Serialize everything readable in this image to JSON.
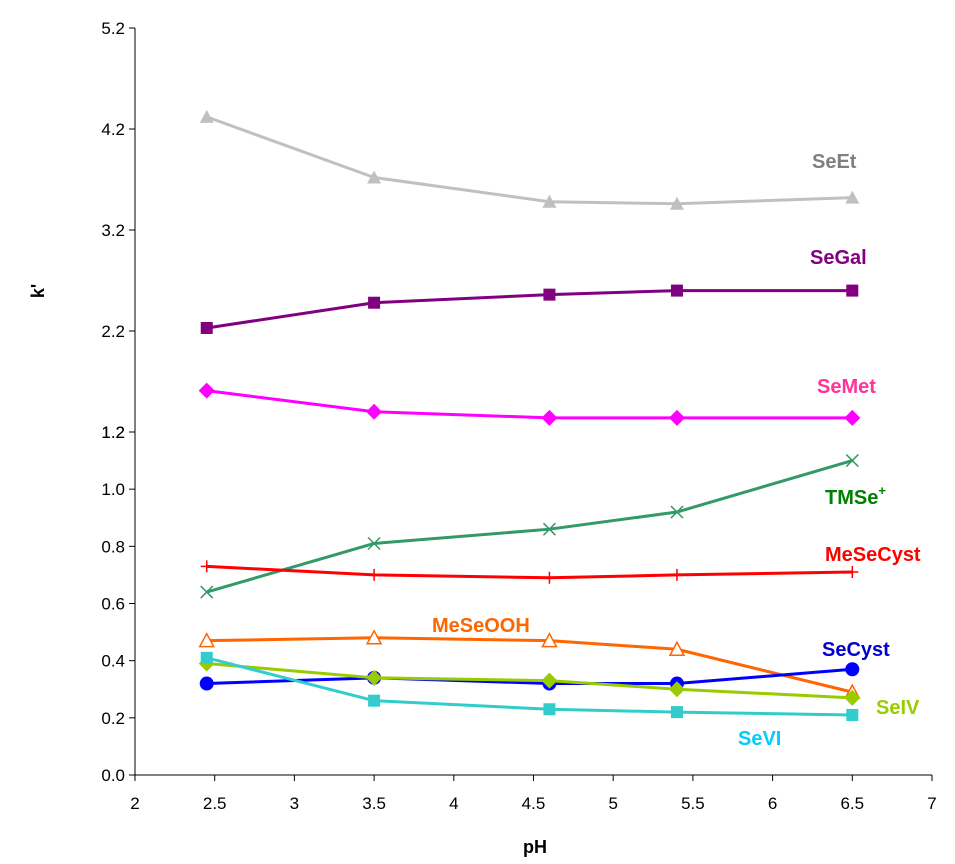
{
  "chart_data": {
    "type": "line",
    "xlabel": "pH",
    "ylabel": "k'",
    "x_axis": {
      "range": [
        2,
        7
      ],
      "ticks": [
        "2",
        "2.5",
        "3",
        "3.5",
        "4",
        "4.5",
        "5",
        "5.5",
        "6",
        "6.5",
        "7"
      ]
    },
    "y_axis_lower": {
      "range": [
        0.0,
        1.2
      ],
      "ticks": [
        "0.0",
        "0.2",
        "0.4",
        "0.6",
        "0.8",
        "1.0",
        "1.2"
      ]
    },
    "y_axis_upper": {
      "range": [
        1.2,
        5.2
      ],
      "ticks": [
        "1.2",
        "2.2",
        "3.2",
        "4.2",
        "5.2"
      ]
    },
    "x": [
      2.45,
      3.5,
      4.6,
      5.4,
      6.5
    ],
    "series": [
      {
        "name": "SeEt",
        "panel": "upper",
        "color": "#c0c0c0",
        "label_color": "#808080",
        "marker": "triangle",
        "values": [
          4.32,
          3.72,
          3.48,
          3.46,
          3.52
        ]
      },
      {
        "name": "SeGal",
        "panel": "upper",
        "color": "#800080",
        "label_color": "#800080",
        "marker": "square",
        "values": [
          2.23,
          2.48,
          2.56,
          2.6,
          2.6
        ]
      },
      {
        "name": "SeMet",
        "panel": "upper",
        "color": "#ff00ff",
        "label_color": "#ff3399",
        "marker": "diamond",
        "values": [
          1.61,
          1.4,
          1.34,
          1.34,
          1.34
        ]
      },
      {
        "name": "TMSe",
        "label_sup": "+",
        "panel": "lower",
        "color": "#339966",
        "label_color": "#008000",
        "marker": "x",
        "values": [
          0.64,
          0.81,
          0.86,
          0.92,
          1.1
        ]
      },
      {
        "name": "MeSeCyst",
        "panel": "lower",
        "color": "#ff0000",
        "label_color": "#ff0000",
        "marker": "plus",
        "values": [
          0.73,
          0.7,
          0.69,
          0.7,
          0.71
        ]
      },
      {
        "name": "MeSeOOH",
        "panel": "lower",
        "color": "#ff6600",
        "label_color": "#ff6600",
        "marker": "open-triangle",
        "values": [
          0.47,
          0.48,
          0.47,
          0.44,
          0.29
        ]
      },
      {
        "name": "SeCyst",
        "panel": "lower",
        "color": "#0000ff",
        "label_color": "#0000cc",
        "marker": "circle",
        "values": [
          0.32,
          0.34,
          0.32,
          0.32,
          0.37
        ]
      },
      {
        "name": "SeIV",
        "panel": "lower",
        "color": "#99cc00",
        "label_color": "#99cc00",
        "marker": "diamond",
        "values": [
          0.39,
          0.34,
          0.33,
          0.3,
          0.27
        ]
      },
      {
        "name": "SeVI",
        "panel": "lower",
        "color": "#33cccc",
        "label_color": "#00ccff",
        "marker": "square",
        "values": [
          0.41,
          0.26,
          0.23,
          0.22,
          0.21
        ]
      }
    ]
  }
}
